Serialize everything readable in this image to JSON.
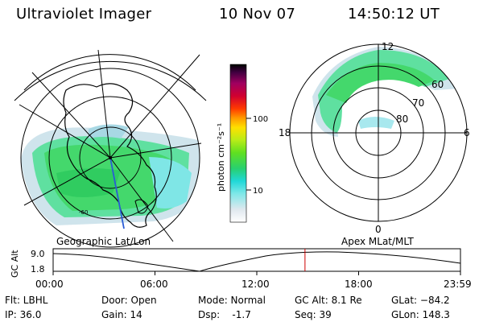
{
  "header": {
    "instrument": "Ultraviolet Imager",
    "date": "10 Nov 07",
    "time": "14:50:12 UT"
  },
  "geo_panel": {
    "label": "Geographic Lat/Lon",
    "annotation": "-60"
  },
  "mag_panel": {
    "label": "Apex  MLat/MLT",
    "mlt_labels": {
      "top": "12",
      "left": "18",
      "right": "6",
      "bottom": "0"
    },
    "lat_labels": [
      "60",
      "70",
      "80"
    ]
  },
  "colorbar": {
    "unit_label": "photon cm⁻²s⁻¹",
    "ticks": [
      "100",
      "10"
    ]
  },
  "altitude_plot": {
    "ylabel": "GC Alt",
    "y_ticks": [
      "9.0",
      "1.8"
    ],
    "x_ticks": [
      "00:00",
      "06:00",
      "12:00",
      "18:00",
      "23:59"
    ],
    "current_marker_hours": 14.84,
    "marker_color": "#cc0000"
  },
  "status": {
    "filter": "Flt: LBHL",
    "ip": "IP: 36.0",
    "door": "Door: Open",
    "gain": "Gain: 14",
    "mode": "Mode: Normal",
    "dsp": "Dsp:    -1.7",
    "gc_alt": "GC Alt: 8.1 Re",
    "seq": "Seq: 39",
    "glat": "GLat: −84.2",
    "glon": "GLon: 148.3"
  }
}
